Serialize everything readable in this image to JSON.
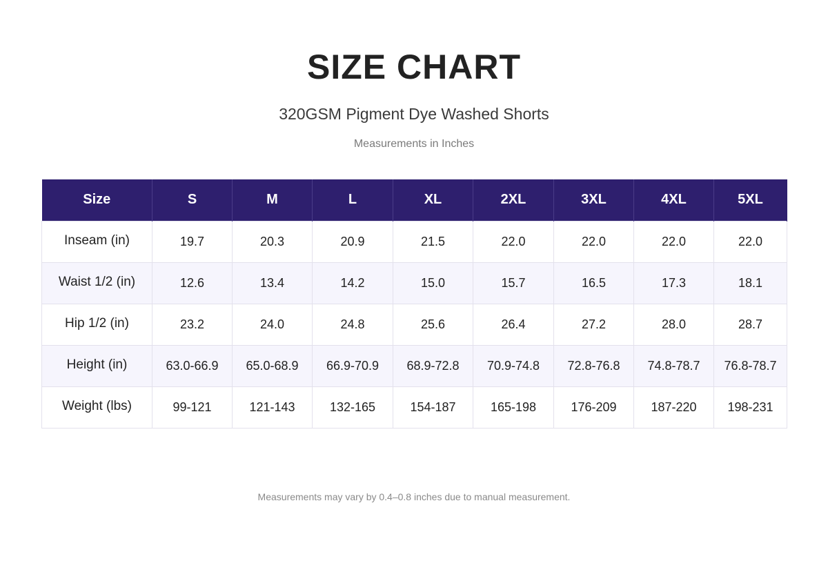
{
  "header": {
    "title": "SIZE CHART",
    "subtitle": "320GSM Pigment Dye Washed Shorts",
    "unit_note": "Measurements in Inches"
  },
  "table": {
    "header_label": "Size",
    "sizes": [
      "S",
      "M",
      "L",
      "XL",
      "2XL",
      "3XL",
      "4XL",
      "5XL"
    ],
    "rows": [
      {
        "label": "Inseam (in)",
        "values": [
          "19.7",
          "20.3",
          "20.9",
          "21.5",
          "22.0",
          "22.0",
          "22.0",
          "22.0"
        ]
      },
      {
        "label": "Waist 1/2 (in)",
        "values": [
          "12.6",
          "13.4",
          "14.2",
          "15.0",
          "15.7",
          "16.5",
          "17.3",
          "18.1"
        ]
      },
      {
        "label": "Hip 1/2 (in)",
        "values": [
          "23.2",
          "24.0",
          "24.8",
          "25.6",
          "26.4",
          "27.2",
          "28.0",
          "28.7"
        ]
      },
      {
        "label": "Height (in)",
        "values": [
          "63.0-66.9",
          "65.0-68.9",
          "66.9-70.9",
          "68.9-72.8",
          "70.9-74.8",
          "72.8-76.8",
          "74.8-78.7",
          "76.8-78.7"
        ]
      },
      {
        "label": "Weight (lbs)",
        "values": [
          "99-121",
          "121-143",
          "132-165",
          "154-187",
          "165-198",
          "176-209",
          "187-220",
          "198-231"
        ]
      }
    ]
  },
  "footer": {
    "note": "Measurements may vary by 0.4–0.8 inches due to manual measurement."
  },
  "colors": {
    "header_bg": "#2e1f6e",
    "header_text": "#ffffff",
    "alt_row_bg": "#f6f5fd"
  }
}
